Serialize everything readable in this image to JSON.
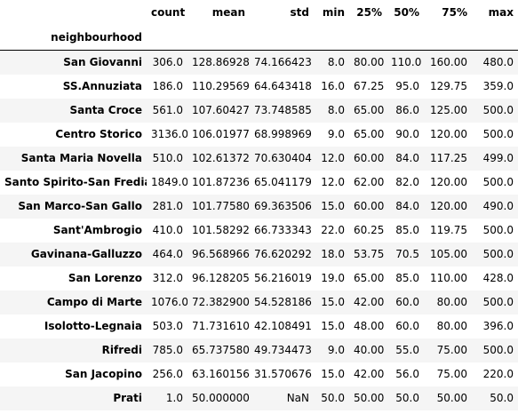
{
  "table": {
    "index_name": "neighbourhood",
    "columns": [
      "count",
      "mean",
      "std",
      "min",
      "25%",
      "50%",
      "75%",
      "max"
    ],
    "rows": [
      {
        "name": "San Giovanni",
        "values": [
          "306.0",
          "128.869281",
          "74.166423",
          "8.0",
          "80.00",
          "110.0",
          "160.00",
          "480.0"
        ]
      },
      {
        "name": "SS.Annuziata",
        "values": [
          "186.0",
          "110.295699",
          "64.643418",
          "16.0",
          "67.25",
          "95.0",
          "129.75",
          "359.0"
        ]
      },
      {
        "name": "Santa Croce",
        "values": [
          "561.0",
          "107.604278",
          "73.748585",
          "8.0",
          "65.00",
          "86.0",
          "125.00",
          "500.0"
        ]
      },
      {
        "name": "Centro Storico",
        "values": [
          "3136.0",
          "106.019770",
          "68.998969",
          "9.0",
          "65.00",
          "90.0",
          "120.00",
          "500.0"
        ]
      },
      {
        "name": "Santa Maria Novella",
        "values": [
          "510.0",
          "102.613725",
          "70.630404",
          "12.0",
          "60.00",
          "84.0",
          "117.25",
          "499.0"
        ]
      },
      {
        "name": "Santo Spirito-San Frediano",
        "values": [
          "1849.0",
          "101.872363",
          "65.041179",
          "12.0",
          "62.00",
          "82.0",
          "120.00",
          "500.0"
        ]
      },
      {
        "name": "San Marco-San Gallo",
        "values": [
          "281.0",
          "101.775801",
          "69.363506",
          "15.0",
          "60.00",
          "84.0",
          "120.00",
          "490.0"
        ]
      },
      {
        "name": "Sant'Ambrogio",
        "values": [
          "410.0",
          "101.582927",
          "66.733343",
          "22.0",
          "60.25",
          "85.0",
          "119.75",
          "500.0"
        ]
      },
      {
        "name": "Gavinana-Galluzzo",
        "values": [
          "464.0",
          "96.568966",
          "76.620292",
          "18.0",
          "53.75",
          "70.5",
          "105.00",
          "500.0"
        ]
      },
      {
        "name": "San Lorenzo",
        "values": [
          "312.0",
          "96.128205",
          "56.216019",
          "19.0",
          "65.00",
          "85.0",
          "110.00",
          "428.0"
        ]
      },
      {
        "name": "Campo di Marte",
        "values": [
          "1076.0",
          "72.382900",
          "54.528186",
          "15.0",
          "42.00",
          "60.0",
          "80.00",
          "500.0"
        ]
      },
      {
        "name": "Isolotto-Legnaia",
        "values": [
          "503.0",
          "71.731610",
          "42.108491",
          "15.0",
          "48.00",
          "60.0",
          "80.00",
          "396.0"
        ]
      },
      {
        "name": "Rifredi",
        "values": [
          "785.0",
          "65.737580",
          "49.734473",
          "9.0",
          "40.00",
          "55.0",
          "75.00",
          "500.0"
        ]
      },
      {
        "name": "San Jacopino",
        "values": [
          "256.0",
          "63.160156",
          "31.570676",
          "15.0",
          "42.00",
          "56.0",
          "75.00",
          "220.0"
        ]
      },
      {
        "name": "Prati",
        "values": [
          "1.0",
          "50.000000",
          "NaN",
          "50.0",
          "50.00",
          "50.0",
          "50.00",
          "50.0"
        ]
      }
    ]
  }
}
